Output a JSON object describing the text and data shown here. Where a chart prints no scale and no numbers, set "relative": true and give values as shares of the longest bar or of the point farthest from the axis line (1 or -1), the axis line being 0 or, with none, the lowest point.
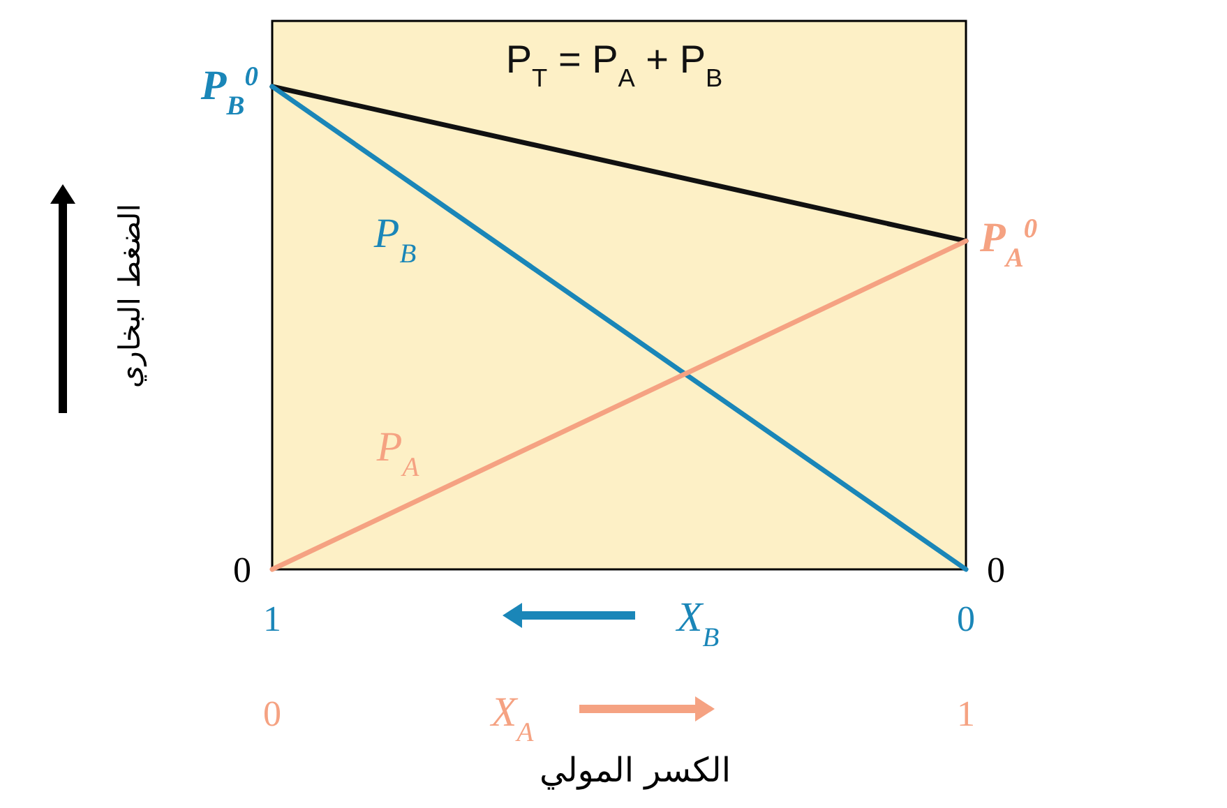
{
  "chart_data": {
    "type": "line",
    "x": [
      0,
      1
    ],
    "xlim": [
      0,
      1
    ],
    "xticks": [
      0,
      1
    ],
    "xlabel": "X$_{A}$",
    "x2lim": [
      1,
      0
    ],
    "x2ticks": [
      1,
      0
    ],
    "x2label": "X$_{B}$",
    "ylabel": "الضغط البخاري",
    "relative": true,
    "series": [
      {
        "name": "P$_{T}$ = P$_{A}$ + P$_{B}$",
        "color": "#111111",
        "values": [
          1,
          0.68
        ]
      },
      {
        "name": "P$_{B}$",
        "color": "#1a86b8",
        "values": [
          1,
          0
        ]
      },
      {
        "name": "P$_{A}$",
        "color": "#f5a282",
        "values": [
          0,
          0.68
        ]
      }
    ],
    "annotations": [
      "P$_{B}$$^{0}$",
      "P$_{A}$$^{0}$",
      "0",
      "0",
      "الكسر المولي"
    ]
  }
}
